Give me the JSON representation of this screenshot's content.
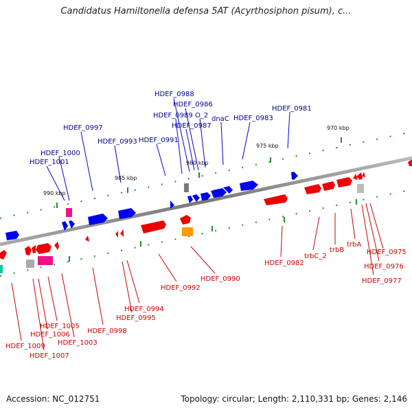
{
  "title": "Candidatus Hamiltonella defensa 5AT (Acyrthosiphon pisum), c...",
  "accession": "Accession: NC_012751",
  "summary": "Topology: circular; Length: 2,110,331 bp; Genes: 2,146",
  "scale_labels": [
    "990 kbp",
    "985 kbp",
    "980 kbp",
    "975 kbp",
    "970 kbp"
  ],
  "top_gene_labels": [
    "HDEF_0988",
    "HDEF_0986",
    "HDEF_0989",
    "O_2",
    "HDEF_0987",
    "dnaC",
    "HDEF_0983",
    "HDEF_0981",
    "HDEF_0997",
    "HDEF_0993",
    "HDEF_0991",
    "HDEF_1000",
    "HDEF_1001"
  ],
  "bottom_gene_labels": [
    "HDEF_0975",
    "HDEF_0976",
    "HDEF_0977",
    "trbA",
    "trbB",
    "trbC_2",
    "HDEF_0982",
    "HDEF_0990",
    "HDEF_0992",
    "HDEF_0994",
    "HDEF_0995",
    "HDEF_0998",
    "HDEF_1005",
    "HDEF_1006",
    "HDEF_1003",
    "HDEF_1009",
    "HDEF_1007"
  ],
  "colors": {
    "forward_gene": "#0000ee",
    "reverse_gene": "#ee0000",
    "label_forward": "#00008b",
    "label_reverse": "#cc0000",
    "backbone": "#888888",
    "tick": "#228b22",
    "pink_gene": "#ee1188",
    "orange_gene": "#ff9900",
    "grey_gene": "#aaaaaa"
  }
}
